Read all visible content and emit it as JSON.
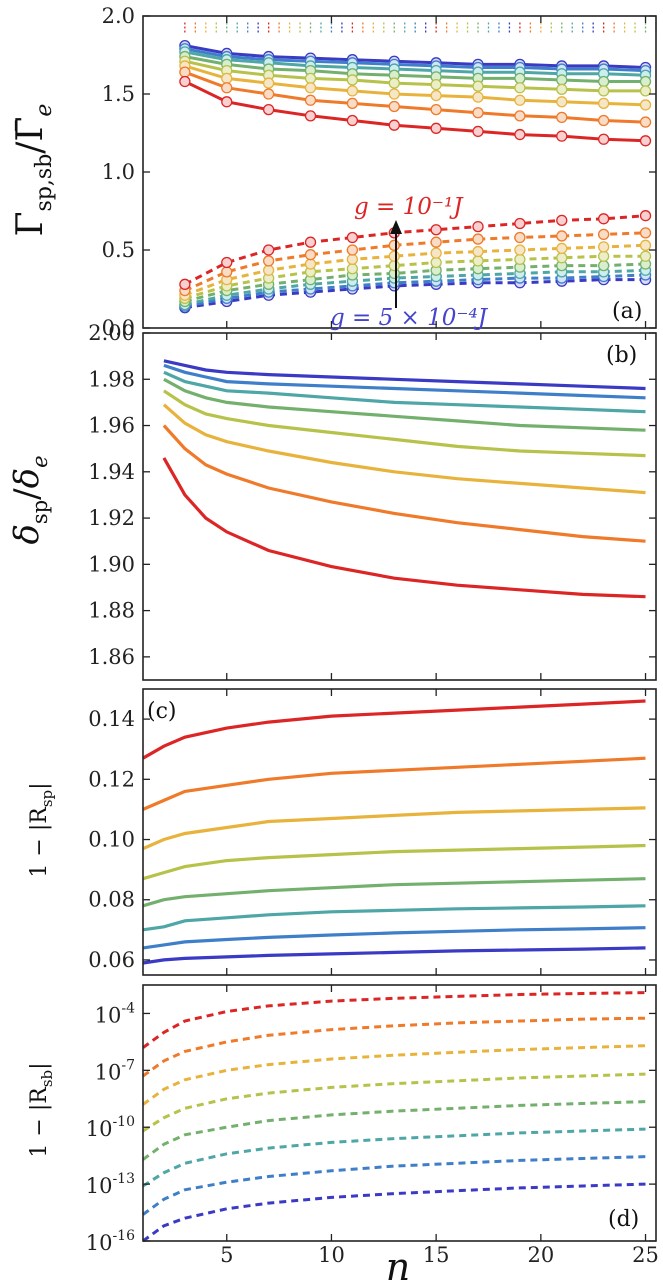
{
  "colors": [
    "#dc2626",
    "#ef7a2a",
    "#e8b33c",
    "#b7c24a",
    "#74b06d",
    "#4fa6a6",
    "#3f7fc9",
    "#3a3ac4"
  ],
  "marker_face_colors": [
    "#f8d0d0",
    "#f8dcc6",
    "#f5e6c8",
    "#ebeec9",
    "#d8eecd",
    "#cdeeee",
    "#d3e4f6",
    "#d8dcf8"
  ],
  "panels": [
    {
      "label": "(a)",
      "ylabel_parts": {
        "base": "Γ",
        "sub": "sp,sb",
        "slash": "/",
        "base2": "Γ̄",
        "sub2": "e"
      },
      "yticks": [
        "0.0",
        "0.5",
        "1.0",
        "1.5",
        "2.0"
      ],
      "ylim": [
        0.0,
        2.0
      ],
      "annotation_top": "g = 10⁻¹J",
      "annotation_bottom": "g = 5 × 10⁻⁴J",
      "chart_data": {
        "type": "scatter+line",
        "x": [
          3,
          5,
          7,
          9,
          11,
          13,
          15,
          17,
          19,
          21,
          23,
          25
        ],
        "xlim": [
          1,
          25.5
        ],
        "ylim": [
          0.0,
          2.0
        ],
        "reference_level": 1.92,
        "solid_series": [
          {
            "values": [
              1.58,
              1.45,
              1.4,
              1.36,
              1.33,
              1.3,
              1.28,
              1.26,
              1.24,
              1.23,
              1.21,
              1.2
            ]
          },
          {
            "values": [
              1.64,
              1.54,
              1.5,
              1.46,
              1.44,
              1.42,
              1.4,
              1.38,
              1.36,
              1.35,
              1.33,
              1.32
            ]
          },
          {
            "values": [
              1.68,
              1.6,
              1.57,
              1.54,
              1.52,
              1.5,
              1.49,
              1.48,
              1.46,
              1.45,
              1.44,
              1.43
            ]
          },
          {
            "values": [
              1.71,
              1.65,
              1.62,
              1.6,
              1.59,
              1.57,
              1.56,
              1.55,
              1.54,
              1.53,
              1.52,
              1.52
            ]
          },
          {
            "values": [
              1.74,
              1.69,
              1.66,
              1.65,
              1.63,
              1.62,
              1.61,
              1.6,
              1.6,
              1.59,
              1.58,
              1.58
            ]
          },
          {
            "values": [
              1.77,
              1.72,
              1.7,
              1.68,
              1.67,
              1.66,
              1.65,
              1.64,
              1.64,
              1.63,
              1.63,
              1.62
            ]
          },
          {
            "values": [
              1.79,
              1.74,
              1.72,
              1.71,
              1.7,
              1.69,
              1.68,
              1.67,
              1.67,
              1.66,
              1.66,
              1.65
            ]
          },
          {
            "values": [
              1.81,
              1.76,
              1.74,
              1.73,
              1.72,
              1.71,
              1.7,
              1.69,
              1.69,
              1.68,
              1.68,
              1.67
            ]
          }
        ],
        "dashed_series": [
          {
            "values": [
              0.28,
              0.42,
              0.5,
              0.55,
              0.58,
              0.61,
              0.63,
              0.65,
              0.67,
              0.69,
              0.7,
              0.72
            ]
          },
          {
            "values": [
              0.24,
              0.36,
              0.43,
              0.47,
              0.5,
              0.53,
              0.55,
              0.57,
              0.58,
              0.59,
              0.6,
              0.61
            ]
          },
          {
            "values": [
              0.21,
              0.31,
              0.37,
              0.41,
              0.44,
              0.46,
              0.48,
              0.49,
              0.5,
              0.51,
              0.52,
              0.53
            ]
          },
          {
            "values": [
              0.19,
              0.27,
              0.32,
              0.36,
              0.38,
              0.4,
              0.42,
              0.43,
              0.44,
              0.45,
              0.46,
              0.46
            ]
          },
          {
            "values": [
              0.17,
              0.24,
              0.28,
              0.31,
              0.34,
              0.35,
              0.37,
              0.38,
              0.39,
              0.4,
              0.4,
              0.41
            ]
          },
          {
            "values": [
              0.15,
              0.21,
              0.25,
              0.28,
              0.3,
              0.32,
              0.33,
              0.34,
              0.35,
              0.36,
              0.36,
              0.37
            ]
          },
          {
            "values": [
              0.14,
              0.19,
              0.23,
              0.25,
              0.27,
              0.29,
              0.3,
              0.31,
              0.32,
              0.32,
              0.33,
              0.34
            ]
          },
          {
            "values": [
              0.13,
              0.17,
              0.21,
              0.23,
              0.25,
              0.27,
              0.28,
              0.29,
              0.29,
              0.3,
              0.31,
              0.31
            ]
          }
        ]
      }
    },
    {
      "label": "(b)",
      "ylabel_parts": {
        "base": "δ",
        "sub": "sp",
        "slash": "/",
        "base2": "δ",
        "sub2": "e"
      },
      "yticks": [
        "1.86",
        "1.88",
        "1.90",
        "1.92",
        "1.94",
        "1.96",
        "1.98",
        "2.00"
      ],
      "ylim": [
        1.85,
        2.0
      ],
      "chart_data": {
        "type": "line",
        "x": [
          2,
          3,
          4,
          5,
          7,
          10,
          13,
          16,
          19,
          22,
          25
        ],
        "xlim": [
          1,
          25.5
        ],
        "series": [
          {
            "values": [
              1.946,
              1.93,
              1.92,
              1.914,
              1.906,
              1.899,
              1.894,
              1.891,
              1.889,
              1.887,
              1.886
            ]
          },
          {
            "values": [
              1.96,
              1.95,
              1.943,
              1.939,
              1.933,
              1.927,
              1.922,
              1.918,
              1.915,
              1.912,
              1.91
            ]
          },
          {
            "values": [
              1.969,
              1.961,
              1.956,
              1.953,
              1.949,
              1.944,
              1.94,
              1.937,
              1.935,
              1.933,
              1.931
            ]
          },
          {
            "values": [
              1.975,
              1.969,
              1.965,
              1.963,
              1.96,
              1.957,
              1.954,
              1.951,
              1.949,
              1.948,
              1.947
            ]
          },
          {
            "values": [
              1.98,
              1.975,
              1.972,
              1.97,
              1.968,
              1.966,
              1.964,
              1.962,
              1.96,
              1.959,
              1.958
            ]
          },
          {
            "values": [
              1.983,
              1.979,
              1.977,
              1.975,
              1.974,
              1.972,
              1.97,
              1.969,
              1.968,
              1.967,
              1.966
            ]
          },
          {
            "values": [
              1.986,
              1.983,
              1.981,
              1.979,
              1.978,
              1.977,
              1.976,
              1.975,
              1.974,
              1.973,
              1.972
            ]
          },
          {
            "values": [
              1.988,
              1.986,
              1.984,
              1.983,
              1.982,
              1.981,
              1.98,
              1.979,
              1.978,
              1.977,
              1.976
            ]
          }
        ]
      }
    },
    {
      "label": "(c)",
      "ylabel_parts": {
        "pre": "1 − |R",
        "sub": "sp",
        "post": "|"
      },
      "yticks": [
        "0.06",
        "0.08",
        "0.10",
        "0.12",
        "0.14"
      ],
      "ylim": [
        0.055,
        0.15
      ],
      "chart_data": {
        "type": "line",
        "x": [
          1,
          2,
          3,
          5,
          7,
          10,
          13,
          16,
          19,
          22,
          25
        ],
        "xlim": [
          1,
          25.5
        ],
        "series": [
          {
            "values": [
              0.127,
              0.131,
              0.134,
              0.137,
              0.139,
              0.141,
              0.142,
              0.143,
              0.144,
              0.145,
              0.146
            ]
          },
          {
            "values": [
              0.11,
              0.113,
              0.116,
              0.118,
              0.12,
              0.122,
              0.123,
              0.124,
              0.125,
              0.126,
              0.127
            ]
          },
          {
            "values": [
              0.097,
              0.1,
              0.102,
              0.104,
              0.106,
              0.107,
              0.108,
              0.109,
              0.1095,
              0.11,
              0.1105
            ]
          },
          {
            "values": [
              0.087,
              0.089,
              0.091,
              0.093,
              0.094,
              0.095,
              0.096,
              0.0965,
              0.097,
              0.0975,
              0.098
            ]
          },
          {
            "values": [
              0.078,
              0.08,
              0.081,
              0.082,
              0.083,
              0.084,
              0.085,
              0.0855,
              0.086,
              0.0865,
              0.087
            ]
          },
          {
            "values": [
              0.07,
              0.071,
              0.073,
              0.074,
              0.075,
              0.076,
              0.0765,
              0.077,
              0.0773,
              0.0776,
              0.078
            ]
          },
          {
            "values": [
              0.064,
              0.065,
              0.066,
              0.0668,
              0.0675,
              0.0683,
              0.069,
              0.0695,
              0.07,
              0.0703,
              0.0707
            ]
          },
          {
            "values": [
              0.059,
              0.06,
              0.0605,
              0.061,
              0.0615,
              0.062,
              0.0625,
              0.063,
              0.0633,
              0.0636,
              0.064
            ]
          }
        ]
      }
    },
    {
      "label": "(d)",
      "ylabel_parts": {
        "pre": "1 − |R",
        "sub": "sb",
        "post": "|"
      },
      "yticks_exp": [
        "-4",
        "-7",
        "-10",
        "-13",
        "-16"
      ],
      "ytick_base": "10",
      "ylim_log10": [
        -16,
        -2.5
      ],
      "chart_data": {
        "type": "line",
        "yscale": "log",
        "x": [
          1,
          2,
          3,
          5,
          7,
          10,
          13,
          16,
          19,
          22,
          25
        ],
        "xlim": [
          1,
          25.5
        ],
        "series_log10": [
          {
            "values": [
              -5.8,
              -5.0,
              -4.4,
              -3.9,
              -3.6,
              -3.35,
              -3.2,
              -3.1,
              -3.0,
              -2.95,
              -2.9
            ]
          },
          {
            "values": [
              -7.3,
              -6.5,
              -6.0,
              -5.5,
              -5.15,
              -4.85,
              -4.65,
              -4.5,
              -4.4,
              -4.3,
              -4.25
            ]
          },
          {
            "values": [
              -8.8,
              -8.0,
              -7.5,
              -7.0,
              -6.7,
              -6.4,
              -6.2,
              -6.05,
              -5.9,
              -5.8,
              -5.7
            ]
          },
          {
            "values": [
              -10.2,
              -9.5,
              -9.0,
              -8.5,
              -8.2,
              -7.9,
              -7.7,
              -7.55,
              -7.4,
              -7.3,
              -7.2
            ]
          },
          {
            "values": [
              -11.7,
              -10.9,
              -10.4,
              -10.0,
              -9.65,
              -9.35,
              -9.15,
              -9.0,
              -8.85,
              -8.75,
              -8.65
            ]
          },
          {
            "values": [
              -13.1,
              -12.4,
              -11.9,
              -11.4,
              -11.1,
              -10.8,
              -10.6,
              -10.45,
              -10.3,
              -10.2,
              -10.1
            ]
          },
          {
            "values": [
              -14.6,
              -13.8,
              -13.3,
              -12.9,
              -12.6,
              -12.3,
              -12.05,
              -11.9,
              -11.75,
              -11.65,
              -11.55
            ]
          },
          {
            "values": [
              -16.0,
              -15.2,
              -14.8,
              -14.3,
              -14.0,
              -13.7,
              -13.5,
              -13.35,
              -13.2,
              -13.1,
              -13.0
            ]
          }
        ]
      }
    }
  ],
  "xaxis": {
    "ticks": [
      "5",
      "10",
      "15",
      "20",
      "25"
    ],
    "tick_values": [
      5,
      10,
      15,
      20,
      25
    ],
    "label": "n"
  }
}
